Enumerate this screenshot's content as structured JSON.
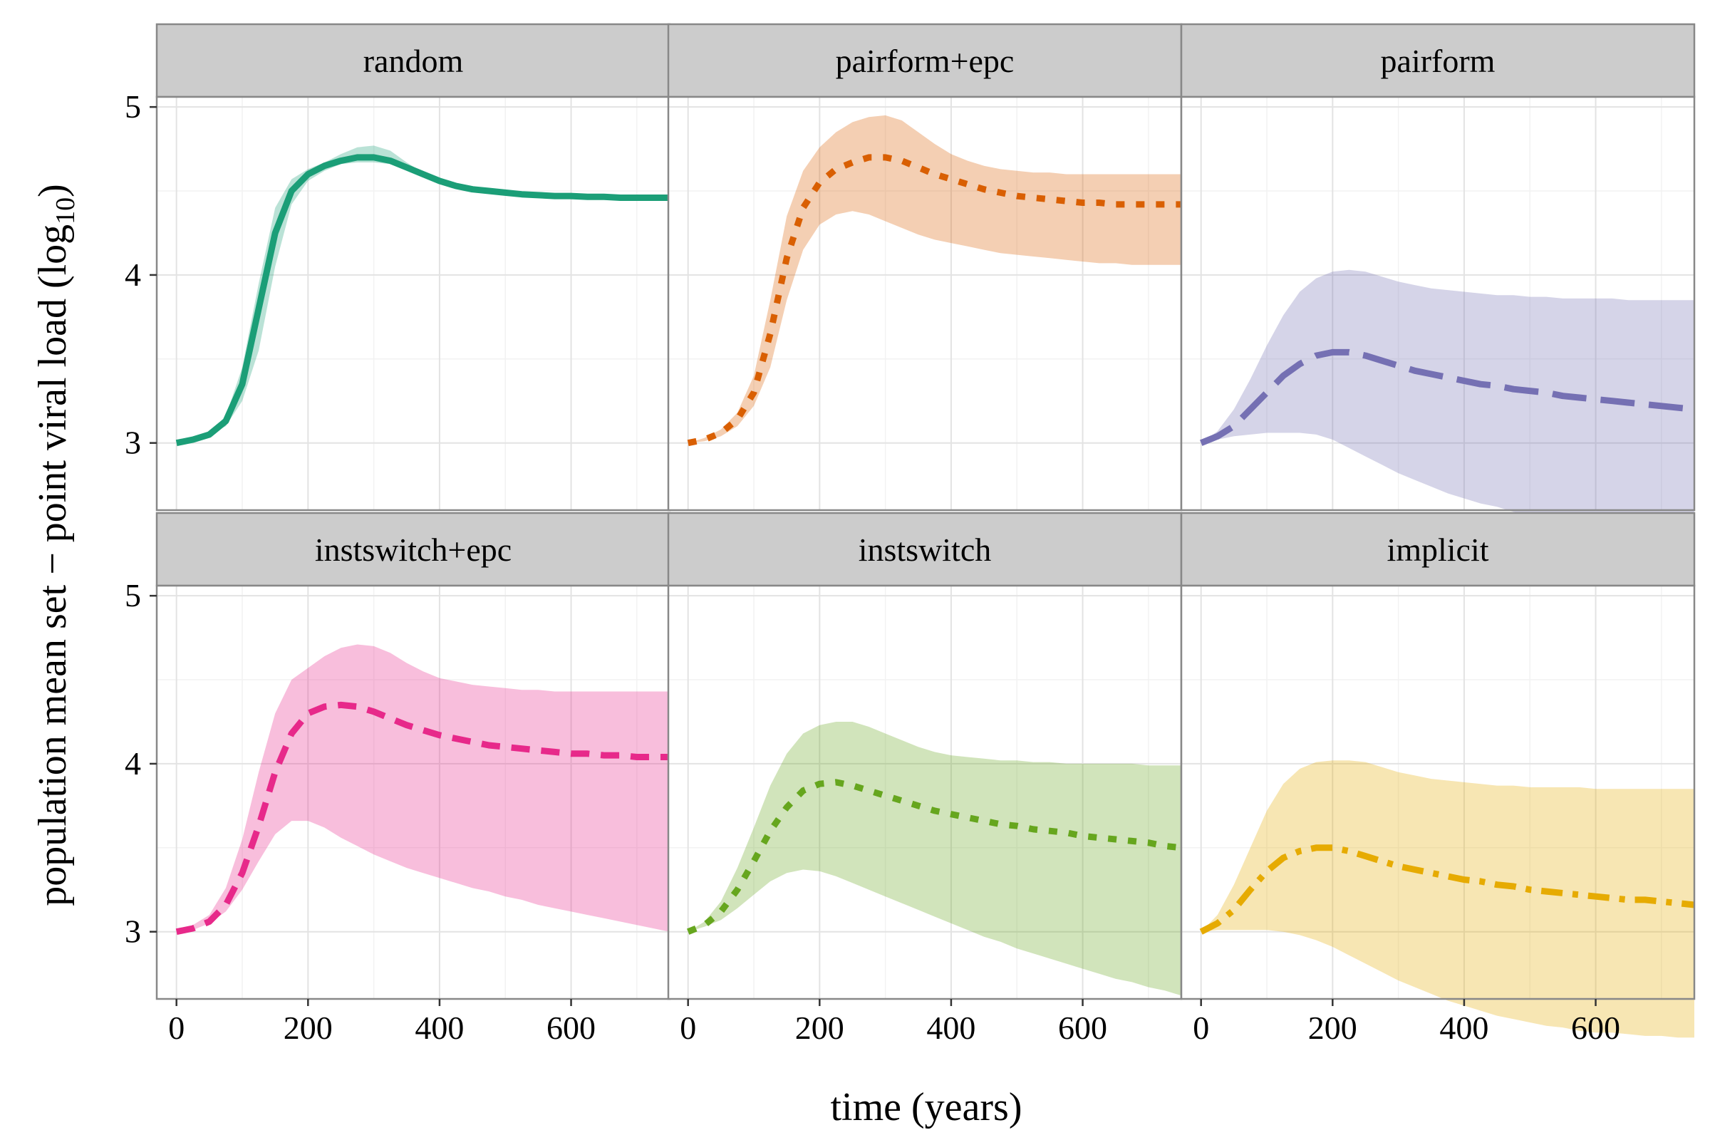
{
  "chart_data": {
    "type": "line",
    "layout": "facet-grid 2x3 with confidence ribbons",
    "xlabel": "time (years)",
    "ylabel_main": "population mean set − point viral load (log",
    "ylabel_sub": "10",
    "ylabel_close": ")",
    "xlim": [
      -30,
      750
    ],
    "ylim": [
      2.6,
      5.06
    ],
    "x_ticks": [
      0,
      200,
      400,
      600
    ],
    "y_ticks": [
      3,
      4,
      5
    ],
    "grid": true,
    "legend": "none",
    "panels": [
      {
        "label": "random",
        "color": "#1b9e77",
        "dash": "solid",
        "x": [
          0,
          25,
          50,
          75,
          100,
          125,
          150,
          175,
          200,
          225,
          250,
          275,
          300,
          325,
          350,
          375,
          400,
          425,
          450,
          475,
          500,
          525,
          550,
          575,
          600,
          625,
          650,
          675,
          700,
          725,
          750
        ],
        "mean": [
          3.0,
          3.02,
          3.05,
          3.13,
          3.35,
          3.8,
          4.25,
          4.5,
          4.6,
          4.65,
          4.68,
          4.7,
          4.7,
          4.68,
          4.64,
          4.6,
          4.56,
          4.53,
          4.51,
          4.5,
          4.49,
          4.48,
          4.475,
          4.47,
          4.47,
          4.465,
          4.465,
          4.46,
          4.46,
          4.46,
          4.46
        ],
        "lower": [
          3.0,
          3.02,
          3.05,
          3.1,
          3.25,
          3.55,
          4.05,
          4.42,
          4.56,
          4.62,
          4.66,
          4.67,
          4.67,
          4.66,
          4.63,
          4.6,
          4.56,
          4.53,
          4.51,
          4.5,
          4.49,
          4.48,
          4.475,
          4.47,
          4.47,
          4.465,
          4.465,
          4.46,
          4.46,
          4.46,
          4.46
        ],
        "upper": [
          3.0,
          3.02,
          3.06,
          3.16,
          3.45,
          3.95,
          4.4,
          4.57,
          4.63,
          4.67,
          4.72,
          4.76,
          4.77,
          4.74,
          4.67,
          4.61,
          4.56,
          4.53,
          4.51,
          4.5,
          4.49,
          4.48,
          4.475,
          4.47,
          4.47,
          4.465,
          4.465,
          4.46,
          4.46,
          4.46,
          4.46
        ]
      },
      {
        "label": "pairform+epc",
        "color": "#d95f02",
        "dash": "dotted",
        "x": [
          0,
          25,
          50,
          75,
          100,
          125,
          150,
          175,
          200,
          225,
          250,
          275,
          300,
          325,
          350,
          375,
          400,
          425,
          450,
          475,
          500,
          525,
          550,
          575,
          600,
          625,
          650,
          675,
          700,
          725,
          750
        ],
        "mean": [
          3.0,
          3.02,
          3.06,
          3.14,
          3.3,
          3.65,
          4.1,
          4.4,
          4.55,
          4.63,
          4.67,
          4.7,
          4.7,
          4.68,
          4.64,
          4.6,
          4.57,
          4.54,
          4.51,
          4.49,
          4.47,
          4.46,
          4.45,
          4.44,
          4.43,
          4.43,
          4.42,
          4.42,
          4.42,
          4.42,
          4.42
        ],
        "lower": [
          3.0,
          3.01,
          3.04,
          3.1,
          3.22,
          3.45,
          3.85,
          4.15,
          4.3,
          4.36,
          4.38,
          4.36,
          4.32,
          4.28,
          4.24,
          4.21,
          4.19,
          4.17,
          4.15,
          4.13,
          4.12,
          4.11,
          4.1,
          4.09,
          4.08,
          4.07,
          4.07,
          4.06,
          4.06,
          4.06,
          4.06
        ],
        "upper": [
          3.0,
          3.03,
          3.08,
          3.18,
          3.4,
          3.85,
          4.35,
          4.62,
          4.76,
          4.85,
          4.91,
          4.94,
          4.95,
          4.92,
          4.85,
          4.78,
          4.72,
          4.68,
          4.65,
          4.63,
          4.62,
          4.61,
          4.61,
          4.6,
          4.6,
          4.6,
          4.6,
          4.6,
          4.6,
          4.6,
          4.6
        ]
      },
      {
        "label": "pairform",
        "color": "#7570b3",
        "dash": "longdash",
        "x": [
          0,
          25,
          50,
          75,
          100,
          125,
          150,
          175,
          200,
          225,
          250,
          275,
          300,
          325,
          350,
          375,
          400,
          425,
          450,
          475,
          500,
          525,
          550,
          575,
          600,
          625,
          650,
          675,
          700,
          725,
          750
        ],
        "mean": [
          3.0,
          3.04,
          3.1,
          3.2,
          3.3,
          3.4,
          3.47,
          3.52,
          3.54,
          3.54,
          3.52,
          3.49,
          3.46,
          3.43,
          3.41,
          3.39,
          3.37,
          3.35,
          3.34,
          3.32,
          3.31,
          3.3,
          3.28,
          3.27,
          3.26,
          3.25,
          3.24,
          3.23,
          3.22,
          3.21,
          3.2
        ],
        "lower": [
          3.0,
          3.02,
          3.04,
          3.05,
          3.06,
          3.06,
          3.06,
          3.05,
          3.02,
          2.97,
          2.92,
          2.87,
          2.82,
          2.78,
          2.74,
          2.7,
          2.67,
          2.64,
          2.62,
          2.59,
          2.57,
          2.55,
          2.53,
          2.51,
          2.49,
          2.47,
          2.46,
          2.44,
          2.43,
          2.41,
          2.4
        ],
        "upper": [
          3.0,
          3.07,
          3.2,
          3.38,
          3.58,
          3.76,
          3.9,
          3.98,
          4.02,
          4.03,
          4.02,
          3.99,
          3.96,
          3.94,
          3.92,
          3.91,
          3.9,
          3.89,
          3.88,
          3.88,
          3.87,
          3.87,
          3.86,
          3.86,
          3.86,
          3.86,
          3.85,
          3.85,
          3.85,
          3.85,
          3.85
        ]
      },
      {
        "label": "instswitch+epc",
        "color": "#e7298a",
        "dash": "dashed",
        "x": [
          0,
          25,
          50,
          75,
          100,
          125,
          150,
          175,
          200,
          225,
          250,
          275,
          300,
          325,
          350,
          375,
          400,
          425,
          450,
          475,
          500,
          525,
          550,
          575,
          600,
          625,
          650,
          675,
          700,
          725,
          750
        ],
        "mean": [
          3.0,
          3.02,
          3.06,
          3.16,
          3.35,
          3.63,
          3.95,
          4.18,
          4.3,
          4.34,
          4.35,
          4.34,
          4.31,
          4.27,
          4.23,
          4.2,
          4.17,
          4.15,
          4.13,
          4.11,
          4.1,
          4.09,
          4.08,
          4.07,
          4.06,
          4.06,
          4.05,
          4.05,
          4.04,
          4.04,
          4.04
        ],
        "lower": [
          3.0,
          3.01,
          3.05,
          3.12,
          3.25,
          3.42,
          3.58,
          3.66,
          3.66,
          3.62,
          3.56,
          3.51,
          3.46,
          3.42,
          3.38,
          3.35,
          3.32,
          3.29,
          3.26,
          3.24,
          3.21,
          3.19,
          3.16,
          3.14,
          3.12,
          3.1,
          3.08,
          3.06,
          3.04,
          3.02,
          3.0
        ],
        "upper": [
          3.0,
          3.04,
          3.1,
          3.26,
          3.55,
          3.95,
          4.3,
          4.5,
          4.57,
          4.64,
          4.69,
          4.71,
          4.7,
          4.66,
          4.6,
          4.55,
          4.51,
          4.49,
          4.47,
          4.46,
          4.45,
          4.44,
          4.44,
          4.43,
          4.43,
          4.43,
          4.43,
          4.43,
          4.43,
          4.43,
          4.43
        ]
      },
      {
        "label": "instswitch",
        "color": "#66a61e",
        "dash": "dotted",
        "x": [
          0,
          25,
          50,
          75,
          100,
          125,
          150,
          175,
          200,
          225,
          250,
          275,
          300,
          325,
          350,
          375,
          400,
          425,
          450,
          475,
          500,
          525,
          550,
          575,
          600,
          625,
          650,
          675,
          700,
          725,
          750
        ],
        "mean": [
          3.0,
          3.04,
          3.12,
          3.25,
          3.42,
          3.6,
          3.74,
          3.84,
          3.88,
          3.89,
          3.87,
          3.84,
          3.81,
          3.78,
          3.75,
          3.72,
          3.7,
          3.68,
          3.66,
          3.64,
          3.63,
          3.61,
          3.6,
          3.59,
          3.57,
          3.56,
          3.55,
          3.54,
          3.53,
          3.51,
          3.5
        ],
        "lower": [
          3.0,
          3.03,
          3.07,
          3.14,
          3.22,
          3.3,
          3.35,
          3.37,
          3.36,
          3.33,
          3.29,
          3.25,
          3.21,
          3.17,
          3.13,
          3.09,
          3.05,
          3.01,
          2.97,
          2.94,
          2.9,
          2.87,
          2.84,
          2.81,
          2.78,
          2.75,
          2.72,
          2.7,
          2.67,
          2.65,
          2.62
        ],
        "upper": [
          3.0,
          3.06,
          3.18,
          3.38,
          3.62,
          3.87,
          4.06,
          4.18,
          4.23,
          4.25,
          4.25,
          4.22,
          4.18,
          4.14,
          4.1,
          4.07,
          4.05,
          4.04,
          4.03,
          4.02,
          4.02,
          4.01,
          4.01,
          4.0,
          4.0,
          4.0,
          4.0,
          4.0,
          3.99,
          3.99,
          3.99
        ]
      },
      {
        "label": "implicit",
        "color": "#e6ab02",
        "dash": "dotdash",
        "x": [
          0,
          25,
          50,
          75,
          100,
          125,
          150,
          175,
          200,
          225,
          250,
          275,
          300,
          325,
          350,
          375,
          400,
          425,
          450,
          475,
          500,
          525,
          550,
          575,
          600,
          625,
          650,
          675,
          700,
          725,
          750
        ],
        "mean": [
          3.0,
          3.05,
          3.13,
          3.25,
          3.36,
          3.44,
          3.48,
          3.5,
          3.5,
          3.48,
          3.45,
          3.42,
          3.39,
          3.37,
          3.35,
          3.33,
          3.31,
          3.3,
          3.28,
          3.27,
          3.25,
          3.24,
          3.23,
          3.22,
          3.21,
          3.2,
          3.19,
          3.19,
          3.18,
          3.17,
          3.16
        ],
        "lower": [
          3.0,
          3.01,
          3.01,
          3.01,
          3.01,
          3.0,
          2.98,
          2.95,
          2.91,
          2.86,
          2.81,
          2.76,
          2.71,
          2.67,
          2.63,
          2.59,
          2.56,
          2.53,
          2.5,
          2.48,
          2.46,
          2.44,
          2.43,
          2.41,
          2.4,
          2.4,
          2.39,
          2.38,
          2.38,
          2.37,
          2.37
        ],
        "upper": [
          3.0,
          3.1,
          3.28,
          3.5,
          3.72,
          3.88,
          3.97,
          4.01,
          4.02,
          4.02,
          4.01,
          3.98,
          3.95,
          3.93,
          3.91,
          3.9,
          3.89,
          3.88,
          3.87,
          3.87,
          3.86,
          3.86,
          3.86,
          3.86,
          3.85,
          3.85,
          3.85,
          3.85,
          3.85,
          3.85,
          3.85
        ]
      }
    ]
  }
}
